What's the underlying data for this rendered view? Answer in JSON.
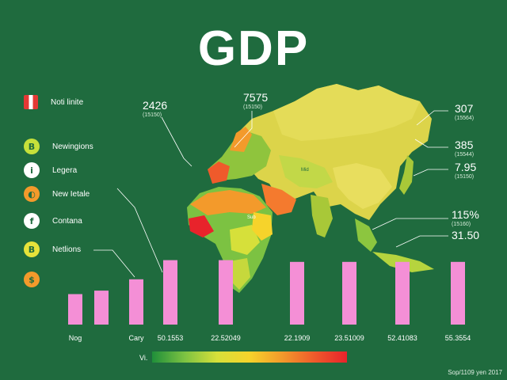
{
  "title": "GDP",
  "legend": [
    {
      "label": "Noti linite",
      "icon": "flag-icon",
      "glyph": "",
      "color": "#e53935"
    },
    {
      "label": "Newingions",
      "icon": "bitcoin-icon",
      "glyph": "B",
      "color": "#c6e03a"
    },
    {
      "label": "Legera",
      "icon": "info-icon",
      "glyph": "i",
      "color": "#ffffff"
    },
    {
      "label": "New Ietale",
      "icon": "coin-icon",
      "glyph": "◐",
      "color": "#f39a2b"
    },
    {
      "label": "Contana",
      "icon": "florin-icon",
      "glyph": "f",
      "color": "#ffffff"
    },
    {
      "label": "Netlions",
      "icon": "bitcoin-icon",
      "glyph": "B",
      "color": "#e6e23a"
    },
    {
      "label": "",
      "icon": "dollar-icon",
      "glyph": "$",
      "color": "#f39a2b"
    }
  ],
  "callouts": [
    {
      "value": "2426",
      "sub": "(15150)"
    },
    {
      "value": "7575",
      "sub": "(15150)"
    },
    {
      "value": "307",
      "sub": "(15564)"
    },
    {
      "value": "385",
      "sub": "(15544)"
    },
    {
      "value": "7.95",
      "sub": "(15150)"
    },
    {
      "value": "115%",
      "sub": "(15160)"
    },
    {
      "value": "31.50",
      "sub": ""
    }
  ],
  "chart_data": {
    "type": "bar",
    "title": "GDP",
    "categories": [
      "Nog",
      "",
      "Cary",
      "50.1553",
      "22.52049",
      "22.1909",
      "23.51009",
      "52.41083",
      "55.3554"
    ],
    "values": [
      35,
      39,
      52,
      74,
      74,
      72,
      72,
      72,
      72
    ],
    "ylim": [
      0,
      100
    ],
    "bar_color": "#f48fd6",
    "color_scale_label": "Vi.",
    "color_scale": [
      "#1f8f3a",
      "#7cc242",
      "#d6e03a",
      "#f6d32b",
      "#f39a2b",
      "#ef5a2b",
      "#e8232b"
    ]
  },
  "source": "Sop/1109 yen 2017"
}
